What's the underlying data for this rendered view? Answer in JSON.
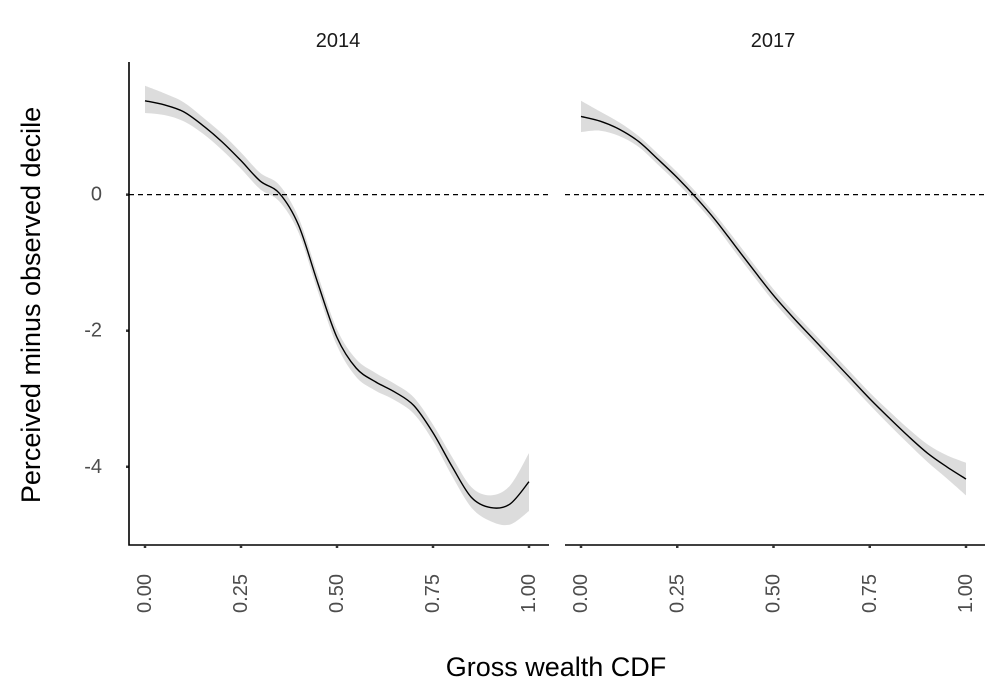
{
  "chart_data": {
    "type": "line",
    "xlabel": "Gross wealth CDF",
    "ylabel": "Perceived minus observed decile",
    "xlim": [
      0,
      1
    ],
    "ylim": [
      -5.15,
      1.95
    ],
    "x_ticks": [
      "0.00",
      "0.25",
      "0.50",
      "0.75",
      "1.00"
    ],
    "x_tick_values": [
      0,
      0.25,
      0.5,
      0.75,
      1
    ],
    "y_ticks": [
      "0",
      "-2",
      "-4"
    ],
    "y_tick_values": [
      0,
      -2,
      -4
    ],
    "reference_line": {
      "y": 0,
      "style": "dashed"
    },
    "grid": false,
    "colors": {
      "line": "#000000",
      "ribbon": "#bfbfbf"
    },
    "panels": [
      {
        "title": "2014",
        "x": [
          0.0,
          0.05,
          0.1,
          0.15,
          0.2,
          0.25,
          0.3,
          0.35,
          0.4,
          0.45,
          0.5,
          0.55,
          0.6,
          0.65,
          0.7,
          0.75,
          0.8,
          0.85,
          0.9,
          0.95,
          1.0
        ],
        "y": [
          1.38,
          1.32,
          1.22,
          1.02,
          0.78,
          0.5,
          0.2,
          0.02,
          -0.45,
          -1.3,
          -2.1,
          -2.55,
          -2.75,
          -2.9,
          -3.1,
          -3.5,
          -4.0,
          -4.45,
          -4.6,
          -4.55,
          -4.22
        ],
        "lower": [
          1.2,
          1.17,
          1.08,
          0.9,
          0.66,
          0.38,
          0.08,
          -0.1,
          -0.56,
          -1.42,
          -2.22,
          -2.68,
          -2.88,
          -3.02,
          -3.22,
          -3.62,
          -4.14,
          -4.6,
          -4.8,
          -4.85,
          -4.65
        ],
        "upper": [
          1.6,
          1.49,
          1.36,
          1.14,
          0.9,
          0.62,
          0.32,
          0.14,
          -0.34,
          -1.18,
          -1.98,
          -2.42,
          -2.62,
          -2.78,
          -2.98,
          -3.38,
          -3.86,
          -4.3,
          -4.42,
          -4.28,
          -3.8
        ]
      },
      {
        "title": "2017",
        "x": [
          0.0,
          0.05,
          0.1,
          0.15,
          0.2,
          0.25,
          0.3,
          0.35,
          0.4,
          0.45,
          0.5,
          0.55,
          0.6,
          0.65,
          0.7,
          0.75,
          0.8,
          0.85,
          0.9,
          0.95,
          1.0
        ],
        "y": [
          1.15,
          1.08,
          0.96,
          0.78,
          0.52,
          0.25,
          -0.05,
          -0.38,
          -0.75,
          -1.12,
          -1.48,
          -1.8,
          -2.1,
          -2.4,
          -2.7,
          -3.0,
          -3.28,
          -3.55,
          -3.8,
          -4.0,
          -4.18
        ],
        "lower": [
          0.92,
          0.94,
          0.86,
          0.7,
          0.44,
          0.17,
          -0.13,
          -0.46,
          -0.84,
          -1.21,
          -1.57,
          -1.89,
          -2.19,
          -2.49,
          -2.79,
          -3.09,
          -3.38,
          -3.66,
          -3.93,
          -4.17,
          -4.42
        ],
        "upper": [
          1.38,
          1.22,
          1.06,
          0.86,
          0.6,
          0.33,
          0.03,
          -0.3,
          -0.66,
          -1.03,
          -1.39,
          -1.71,
          -2.01,
          -2.31,
          -2.61,
          -2.91,
          -3.18,
          -3.44,
          -3.67,
          -3.83,
          -3.94
        ]
      }
    ]
  }
}
